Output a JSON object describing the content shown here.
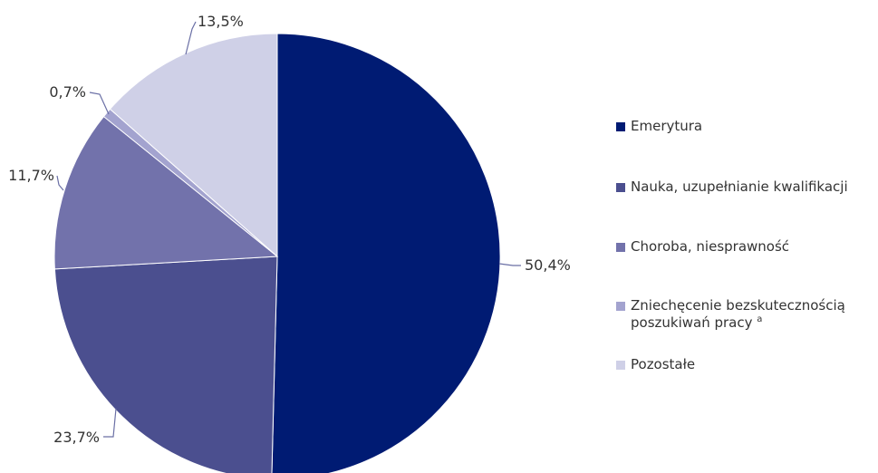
{
  "chart_data": {
    "type": "pie",
    "title": "",
    "slices": [
      {
        "label": "Emerytura",
        "value": 50.4,
        "value_label": "50,4%",
        "color": "#001b73"
      },
      {
        "label": "Nauka, uzupełnianie kwalifikacji",
        "value": 23.7,
        "value_label": "23,7%",
        "color": "#4b4f8f"
      },
      {
        "label": "Choroba, niesprawność",
        "value": 11.7,
        "value_label": "11,7%",
        "color": "#7272ab"
      },
      {
        "label": "Zniechęcenie bezskutecznością poszukiwań pracy",
        "label_line1": "Zniechęcenie bezskutecznością",
        "label_line2": "poszukiwań pracy",
        "footnote": "a",
        "value": 0.7,
        "value_label": "0,7%",
        "color": "#a3a3cf"
      },
      {
        "label": "Pozostałe",
        "value": 13.5,
        "value_label": "13,5%",
        "color": "#cfd0e7"
      }
    ],
    "start": "12 o'clock",
    "direction": "clockwise",
    "legend_position": "right"
  }
}
